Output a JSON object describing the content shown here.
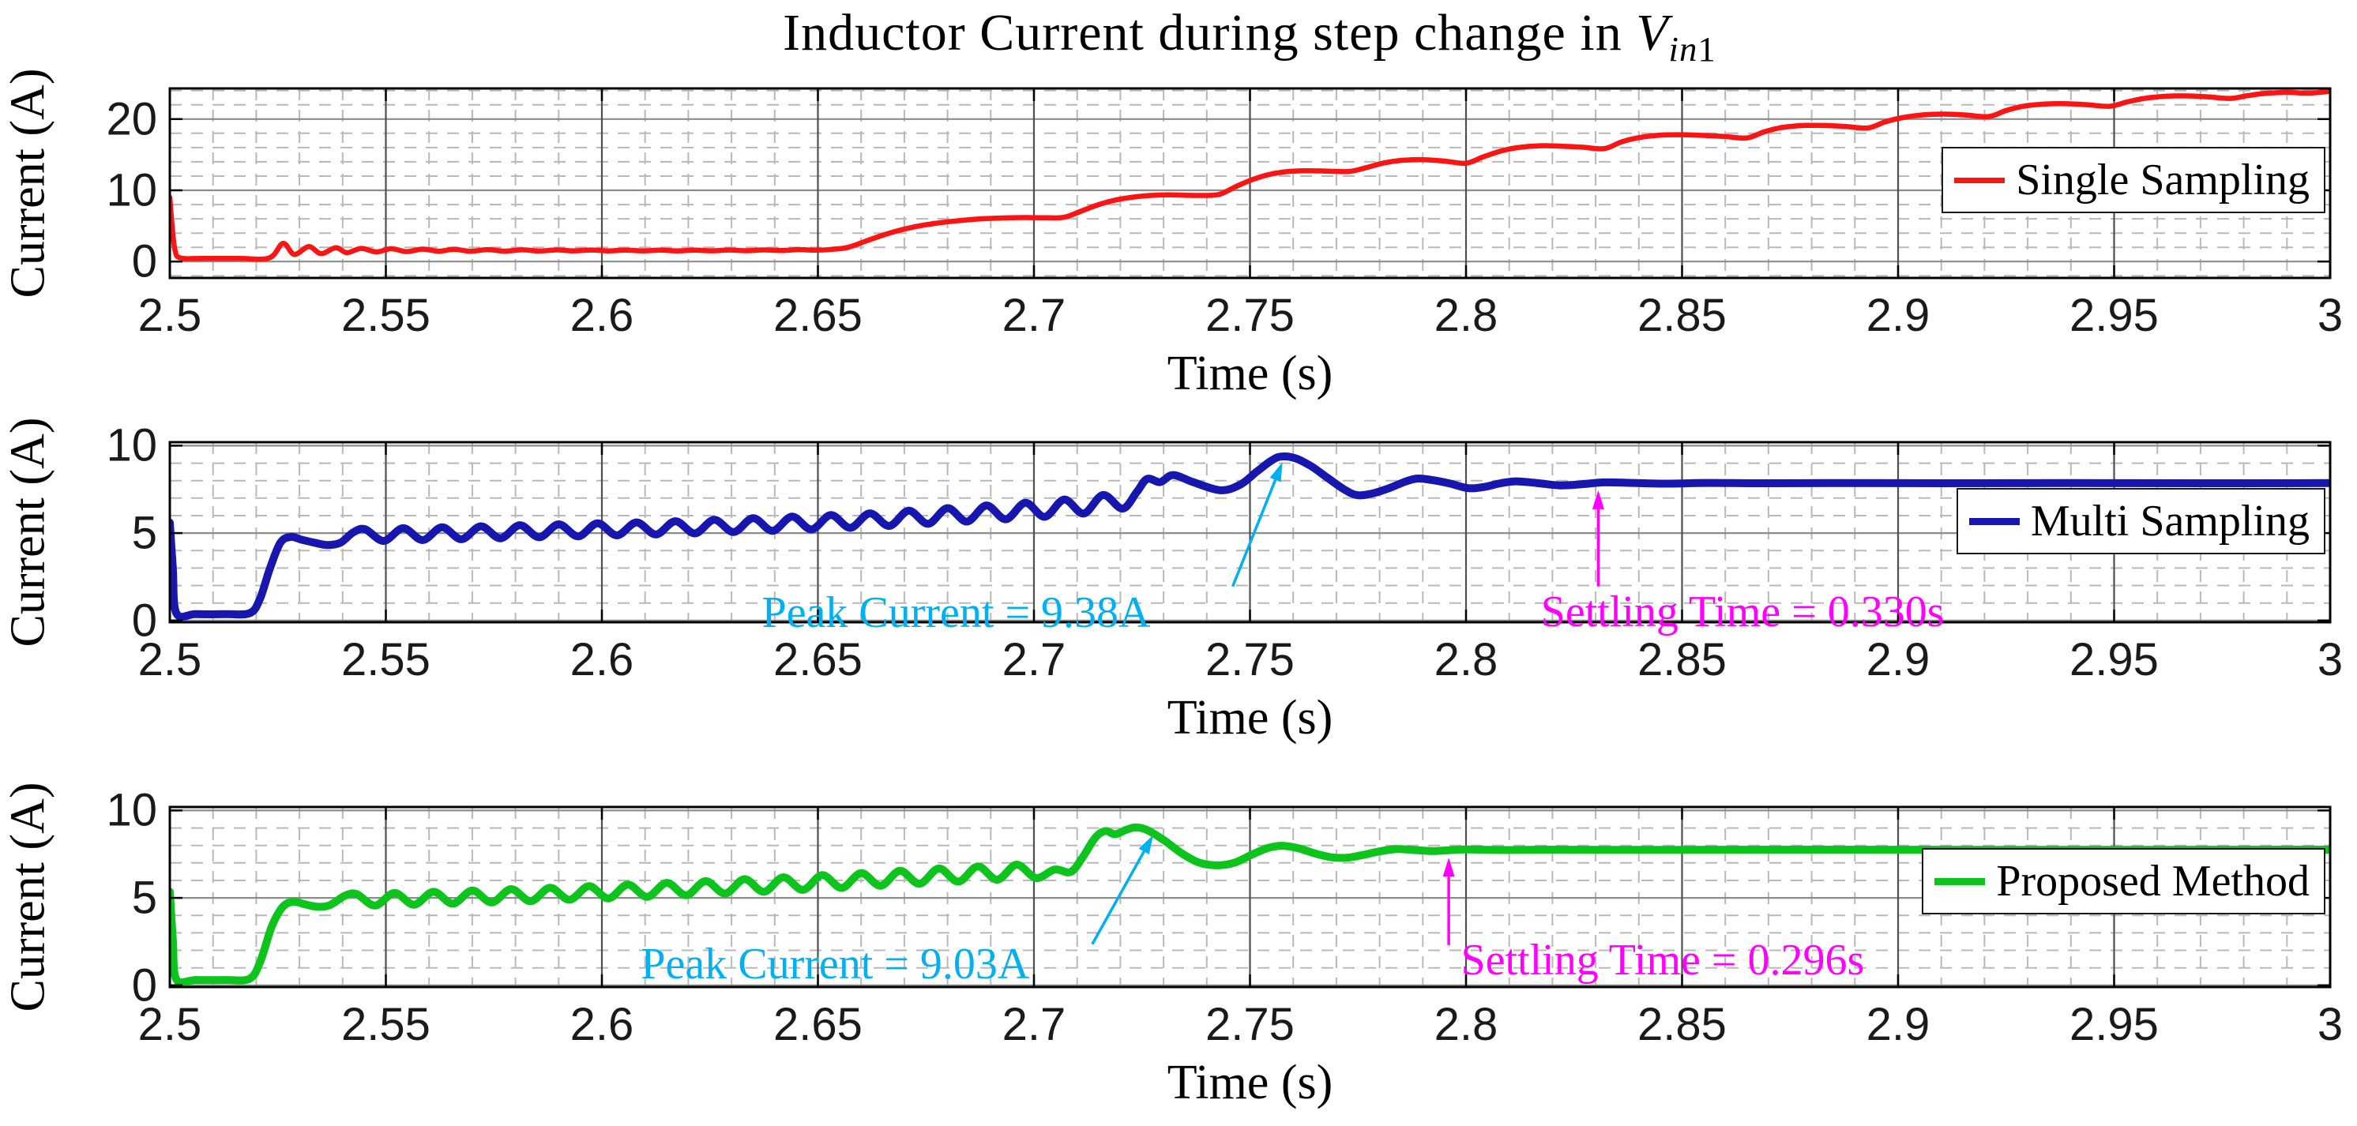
{
  "figure": {
    "title": {
      "prefix": "Inductor Current during step change in ",
      "variable": "V",
      "subscript_italic": "in",
      "subscript_upright": "1"
    },
    "background": "#ffffff"
  },
  "axes_common": {
    "x_label": "Time (s)",
    "y_label": "Current (A)",
    "xlim": [
      2.5,
      3.0
    ],
    "x_ticks": [
      2.5,
      2.55,
      2.6,
      2.65,
      2.7,
      2.75,
      2.8,
      2.85,
      2.9,
      2.95,
      3.0
    ],
    "x_tick_labels": [
      "2.5",
      "2.55",
      "2.6",
      "2.65",
      "2.7",
      "2.75",
      "2.8",
      "2.85",
      "2.9",
      "2.95",
      "3"
    ],
    "x_minor_step": 0.01,
    "grid": {
      "minor_color": "#b8b8b8",
      "major_h_color": "#8c8c8c",
      "major_v_color": "#4f4f4f",
      "border_color": "#000000"
    }
  },
  "chart_data": [
    {
      "type": "line",
      "name": "single-sampling",
      "legend": "Single Sampling",
      "color": "#fb1414",
      "line_width": 6.5,
      "xlabel": "Time (s)",
      "ylabel": "Current (A)",
      "ylim": [
        -2.3,
        24.3
      ],
      "y_ticks": [
        0,
        10,
        20
      ],
      "y_tick_labels": [
        "0",
        "10",
        "20"
      ],
      "y_minor_step": 2,
      "points": [
        [
          2.5,
          9.0
        ],
        [
          2.5005,
          5.2
        ],
        [
          2.5012,
          1.6
        ],
        [
          2.5025,
          0.5
        ],
        [
          2.508,
          0.45
        ],
        [
          2.516,
          0.45
        ],
        [
          2.523,
          0.5
        ],
        [
          2.5262,
          2.55
        ],
        [
          2.5288,
          1.0
        ],
        [
          2.5322,
          2.1
        ],
        [
          2.535,
          1.1
        ],
        [
          2.5384,
          1.95
        ],
        [
          2.541,
          1.25
        ],
        [
          2.5443,
          1.85
        ],
        [
          2.5478,
          1.35
        ],
        [
          2.5512,
          1.8
        ],
        [
          2.5548,
          1.4
        ],
        [
          2.5585,
          1.75
        ],
        [
          2.5622,
          1.45
        ],
        [
          2.5658,
          1.72
        ],
        [
          2.5695,
          1.45
        ],
        [
          2.5735,
          1.68
        ],
        [
          2.5775,
          1.46
        ],
        [
          2.5815,
          1.65
        ],
        [
          2.5855,
          1.48
        ],
        [
          2.5895,
          1.63
        ],
        [
          2.5935,
          1.5
        ],
        [
          2.5975,
          1.62
        ],
        [
          2.6015,
          1.5
        ],
        [
          2.6055,
          1.6
        ],
        [
          2.6095,
          1.5
        ],
        [
          2.6135,
          1.6
        ],
        [
          2.6175,
          1.5
        ],
        [
          2.6215,
          1.6
        ],
        [
          2.6255,
          1.51
        ],
        [
          2.6295,
          1.62
        ],
        [
          2.6335,
          1.52
        ],
        [
          2.6375,
          1.64
        ],
        [
          2.6415,
          1.55
        ],
        [
          2.6455,
          1.68
        ],
        [
          2.6495,
          1.6
        ],
        [
          2.6535,
          1.72
        ],
        [
          2.657,
          2.0
        ],
        [
          2.661,
          2.85
        ],
        [
          2.665,
          3.7
        ],
        [
          2.669,
          4.4
        ],
        [
          2.673,
          4.95
        ],
        [
          2.677,
          5.35
        ],
        [
          2.681,
          5.65
        ],
        [
          2.685,
          5.88
        ],
        [
          2.689,
          6.03
        ],
        [
          2.693,
          6.12
        ],
        [
          2.698,
          6.18
        ],
        [
          2.703,
          6.14
        ],
        [
          2.707,
          6.22
        ],
        [
          2.711,
          7.1
        ],
        [
          2.715,
          8.0
        ],
        [
          2.719,
          8.65
        ],
        [
          2.723,
          9.05
        ],
        [
          2.727,
          9.28
        ],
        [
          2.731,
          9.37
        ],
        [
          2.735,
          9.32
        ],
        [
          2.739,
          9.28
        ],
        [
          2.743,
          9.45
        ],
        [
          2.747,
          10.6
        ],
        [
          2.751,
          11.6
        ],
        [
          2.755,
          12.3
        ],
        [
          2.759,
          12.65
        ],
        [
          2.763,
          12.75
        ],
        [
          2.768,
          12.7
        ],
        [
          2.773,
          12.65
        ],
        [
          2.777,
          13.2
        ],
        [
          2.781,
          13.85
        ],
        [
          2.785,
          14.2
        ],
        [
          2.79,
          14.3
        ],
        [
          2.795,
          14.1
        ],
        [
          2.8,
          13.8
        ],
        [
          2.804,
          14.7
        ],
        [
          2.808,
          15.5
        ],
        [
          2.812,
          16.0
        ],
        [
          2.817,
          16.25
        ],
        [
          2.822,
          16.2
        ],
        [
          2.827,
          16.05
        ],
        [
          2.832,
          15.85
        ],
        [
          2.836,
          16.8
        ],
        [
          2.84,
          17.4
        ],
        [
          2.845,
          17.75
        ],
        [
          2.85,
          17.8
        ],
        [
          2.855,
          17.7
        ],
        [
          2.86,
          17.55
        ],
        [
          2.865,
          17.35
        ],
        [
          2.869,
          18.2
        ],
        [
          2.873,
          18.8
        ],
        [
          2.878,
          19.1
        ],
        [
          2.883,
          19.1
        ],
        [
          2.888,
          18.95
        ],
        [
          2.893,
          18.75
        ],
        [
          2.897,
          19.6
        ],
        [
          2.901,
          20.2
        ],
        [
          2.906,
          20.6
        ],
        [
          2.911,
          20.7
        ],
        [
          2.916,
          20.55
        ],
        [
          2.921,
          20.35
        ],
        [
          2.925,
          21.2
        ],
        [
          2.929,
          21.8
        ],
        [
          2.934,
          22.1
        ],
        [
          2.939,
          22.15
        ],
        [
          2.944,
          22.0
        ],
        [
          2.949,
          21.8
        ],
        [
          2.953,
          22.4
        ],
        [
          2.957,
          22.9
        ],
        [
          2.962,
          23.2
        ],
        [
          2.967,
          23.25
        ],
        [
          2.972,
          23.1
        ],
        [
          2.977,
          22.9
        ],
        [
          2.981,
          23.3
        ],
        [
          2.985,
          23.6
        ],
        [
          2.99,
          23.75
        ],
        [
          2.995,
          23.65
        ],
        [
          3.0,
          23.9
        ]
      ],
      "annotations": []
    },
    {
      "type": "line",
      "name": "multi-sampling",
      "legend": "Multi Sampling",
      "color": "#1717b0",
      "line_width": 10,
      "xlabel": "Time (s)",
      "ylabel": "Current (A)",
      "ylim": [
        -0.1,
        10.2
      ],
      "y_ticks": [
        0,
        5,
        10
      ],
      "y_tick_labels": [
        "0",
        "5",
        "10"
      ],
      "y_minor_step": 1,
      "points": [
        [
          2.5,
          5.6
        ],
        [
          2.5007,
          3.0
        ],
        [
          2.5015,
          0.42
        ],
        [
          2.506,
          0.36
        ],
        [
          2.513,
          0.36
        ],
        [
          2.5185,
          0.42
        ],
        [
          2.5208,
          1.2
        ],
        [
          2.5232,
          3.0
        ],
        [
          2.5256,
          4.45
        ],
        [
          2.528,
          4.78
        ],
        [
          2.5305,
          4.62
        ],
        [
          2.5335,
          4.45
        ],
        [
          2.5365,
          4.32
        ],
        [
          2.5395,
          4.45
        ],
        [
          2.5425,
          5.05
        ],
        [
          2.5452,
          5.22
        ],
        [
          2.5495,
          4.55
        ],
        [
          2.554,
          5.28
        ],
        [
          2.5585,
          4.6
        ],
        [
          2.563,
          5.33
        ],
        [
          2.5675,
          4.65
        ],
        [
          2.572,
          5.39
        ],
        [
          2.5765,
          4.7
        ],
        [
          2.581,
          5.45
        ],
        [
          2.5855,
          4.76
        ],
        [
          2.59,
          5.5
        ],
        [
          2.5945,
          4.81
        ],
        [
          2.599,
          5.56
        ],
        [
          2.6035,
          4.87
        ],
        [
          2.608,
          5.61
        ],
        [
          2.6125,
          4.92
        ],
        [
          2.617,
          5.68
        ],
        [
          2.6215,
          4.98
        ],
        [
          2.626,
          5.76
        ],
        [
          2.6305,
          5.06
        ],
        [
          2.635,
          5.85
        ],
        [
          2.6395,
          5.13
        ],
        [
          2.644,
          5.94
        ],
        [
          2.6485,
          5.21
        ],
        [
          2.653,
          6.03
        ],
        [
          2.6575,
          5.3
        ],
        [
          2.662,
          6.13
        ],
        [
          2.6665,
          5.41
        ],
        [
          2.671,
          6.28
        ],
        [
          2.6755,
          5.53
        ],
        [
          2.68,
          6.43
        ],
        [
          2.6845,
          5.66
        ],
        [
          2.689,
          6.58
        ],
        [
          2.6935,
          5.79
        ],
        [
          2.698,
          6.73
        ],
        [
          2.7025,
          5.93
        ],
        [
          2.707,
          6.92
        ],
        [
          2.7115,
          6.12
        ],
        [
          2.716,
          7.18
        ],
        [
          2.7205,
          6.4
        ],
        [
          2.7238,
          7.35
        ],
        [
          2.7262,
          8.1
        ],
        [
          2.7292,
          7.92
        ],
        [
          2.7322,
          8.32
        ],
        [
          2.7368,
          7.92
        ],
        [
          2.7432,
          7.45
        ],
        [
          2.7478,
          7.78
        ],
        [
          2.7515,
          8.5
        ],
        [
          2.7548,
          9.12
        ],
        [
          2.7572,
          9.38
        ],
        [
          2.7605,
          9.28
        ],
        [
          2.7642,
          8.82
        ],
        [
          2.768,
          8.15
        ],
        [
          2.7718,
          7.5
        ],
        [
          2.7748,
          7.17
        ],
        [
          2.7782,
          7.26
        ],
        [
          2.782,
          7.55
        ],
        [
          2.786,
          7.95
        ],
        [
          2.7888,
          8.12
        ],
        [
          2.792,
          8.04
        ],
        [
          2.7962,
          7.84
        ],
        [
          2.8005,
          7.57
        ],
        [
          2.8042,
          7.64
        ],
        [
          2.808,
          7.85
        ],
        [
          2.8115,
          7.96
        ],
        [
          2.8162,
          7.87
        ],
        [
          2.8218,
          7.73
        ],
        [
          2.827,
          7.8
        ],
        [
          2.832,
          7.9
        ],
        [
          2.8385,
          7.87
        ],
        [
          2.846,
          7.83
        ],
        [
          2.856,
          7.87
        ],
        [
          2.868,
          7.85
        ],
        [
          2.885,
          7.86
        ],
        [
          2.91,
          7.85
        ],
        [
          2.94,
          7.86
        ],
        [
          2.97,
          7.85
        ],
        [
          3.0,
          7.86
        ]
      ],
      "annotations": [
        {
          "label": "Peak Current = 9.38A",
          "color": "#00b0f0",
          "text_t": 2.682,
          "text_v": 0.45,
          "arrow": {
            "from_t": 2.746,
            "from_v": 1.95,
            "to_t": 2.7575,
            "to_v": 9.05
          }
        },
        {
          "label": "Settling Time = 0.330s",
          "color": "#ff00ff",
          "text_t": 2.864,
          "text_v": 0.5,
          "arrow": {
            "from_t": 2.8306,
            "from_v": 1.95,
            "to_t": 2.8306,
            "to_v": 7.45
          }
        }
      ]
    },
    {
      "type": "line",
      "name": "proposed-method",
      "legend": "Proposed Method",
      "color": "#0cc41c",
      "line_width": 10,
      "xlabel": "Time (s)",
      "ylabel": "Current (A)",
      "ylim": [
        -0.1,
        10.2
      ],
      "y_ticks": [
        0,
        5,
        10
      ],
      "y_tick_labels": [
        "0",
        "5",
        "10"
      ],
      "y_minor_step": 1,
      "points": [
        [
          2.5,
          5.35
        ],
        [
          2.5007,
          2.6
        ],
        [
          2.5015,
          0.34
        ],
        [
          2.506,
          0.3
        ],
        [
          2.513,
          0.3
        ],
        [
          2.5185,
          0.38
        ],
        [
          2.521,
          1.4
        ],
        [
          2.5235,
          3.3
        ],
        [
          2.526,
          4.45
        ],
        [
          2.5285,
          4.78
        ],
        [
          2.531,
          4.65
        ],
        [
          2.534,
          4.5
        ],
        [
          2.537,
          4.58
        ],
        [
          2.5405,
          5.12
        ],
        [
          2.5432,
          5.22
        ],
        [
          2.5475,
          4.56
        ],
        [
          2.552,
          5.28
        ],
        [
          2.5565,
          4.61
        ],
        [
          2.561,
          5.35
        ],
        [
          2.5655,
          4.67
        ],
        [
          2.57,
          5.42
        ],
        [
          2.5745,
          4.74
        ],
        [
          2.579,
          5.5
        ],
        [
          2.5835,
          4.81
        ],
        [
          2.588,
          5.58
        ],
        [
          2.5925,
          4.89
        ],
        [
          2.597,
          5.67
        ],
        [
          2.6015,
          4.97
        ],
        [
          2.606,
          5.76
        ],
        [
          2.6105,
          5.06
        ],
        [
          2.615,
          5.86
        ],
        [
          2.6195,
          5.15
        ],
        [
          2.624,
          5.96
        ],
        [
          2.6285,
          5.25
        ],
        [
          2.633,
          6.07
        ],
        [
          2.6375,
          5.35
        ],
        [
          2.642,
          6.18
        ],
        [
          2.6465,
          5.46
        ],
        [
          2.651,
          6.3
        ],
        [
          2.6555,
          5.57
        ],
        [
          2.66,
          6.42
        ],
        [
          2.6645,
          5.69
        ],
        [
          2.669,
          6.55
        ],
        [
          2.6735,
          5.81
        ],
        [
          2.678,
          6.68
        ],
        [
          2.6825,
          5.93
        ],
        [
          2.687,
          6.8
        ],
        [
          2.6915,
          6.04
        ],
        [
          2.696,
          6.9
        ],
        [
          2.7005,
          6.14
        ],
        [
          2.7048,
          6.62
        ],
        [
          2.7085,
          6.48
        ],
        [
          2.7112,
          7.3
        ],
        [
          2.7142,
          8.45
        ],
        [
          2.7165,
          8.82
        ],
        [
          2.7188,
          8.64
        ],
        [
          2.7212,
          8.88
        ],
        [
          2.7235,
          9.03
        ],
        [
          2.7262,
          8.88
        ],
        [
          2.7302,
          8.28
        ],
        [
          2.7342,
          7.55
        ],
        [
          2.7382,
          7.02
        ],
        [
          2.7425,
          6.86
        ],
        [
          2.7465,
          7.02
        ],
        [
          2.7505,
          7.48
        ],
        [
          2.7542,
          7.86
        ],
        [
          2.7575,
          7.98
        ],
        [
          2.7612,
          7.84
        ],
        [
          2.7652,
          7.53
        ],
        [
          2.769,
          7.32
        ],
        [
          2.7725,
          7.3
        ],
        [
          2.7762,
          7.46
        ],
        [
          2.78,
          7.66
        ],
        [
          2.784,
          7.79
        ],
        [
          2.788,
          7.74
        ],
        [
          2.792,
          7.68
        ],
        [
          2.7962,
          7.73
        ],
        [
          2.8005,
          7.77
        ],
        [
          2.8085,
          7.74
        ],
        [
          2.8185,
          7.76
        ],
        [
          2.8325,
          7.75
        ],
        [
          2.85,
          7.75
        ],
        [
          2.88,
          7.76
        ],
        [
          2.92,
          7.75
        ],
        [
          2.96,
          7.75
        ],
        [
          3.0,
          7.76
        ]
      ],
      "annotations": [
        {
          "label": "Peak Current = 9.03A",
          "color": "#00b0f0",
          "text_t": 2.654,
          "text_v": 1.2,
          "arrow": {
            "from_t": 2.7135,
            "from_v": 2.35,
            "to_t": 2.7276,
            "to_v": 8.6
          }
        },
        {
          "label": "Settling Time = 0.296s",
          "color": "#ff00ff",
          "text_t": 2.8455,
          "text_v": 1.42,
          "arrow": {
            "from_t": 2.796,
            "from_v": 2.3,
            "to_t": 2.796,
            "to_v": 7.3
          }
        }
      ]
    }
  ]
}
